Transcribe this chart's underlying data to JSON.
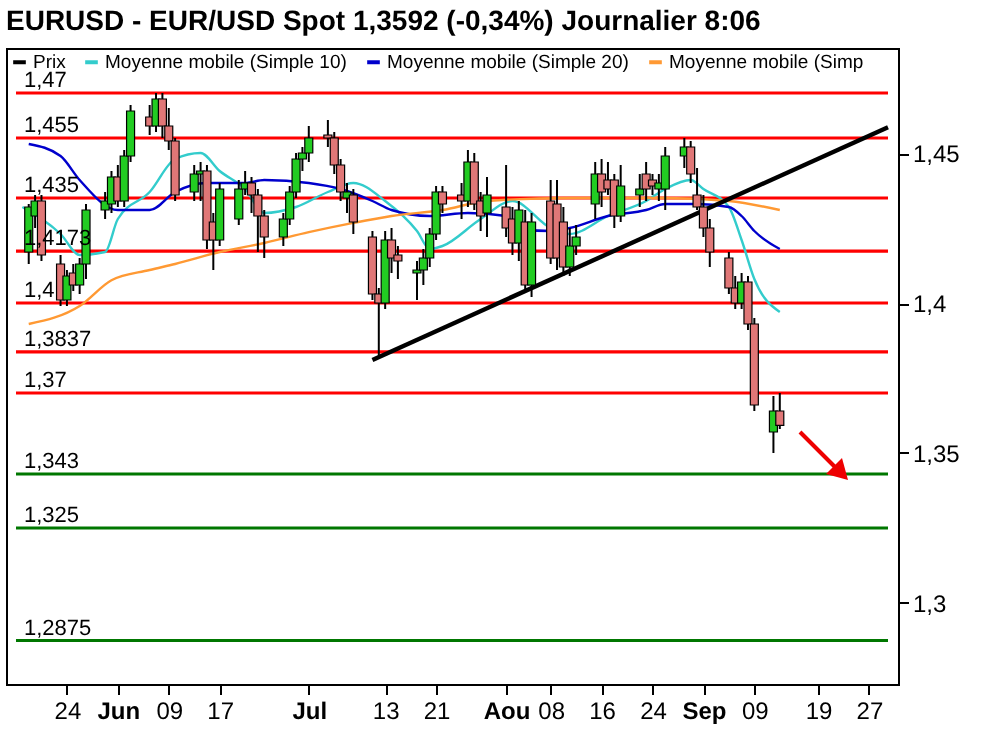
{
  "chart_data": {
    "type": "candlestick",
    "title": "EURUSD - EUR/USD Spot 1,3592 (-0,34%) Journalier 8:06",
    "xlim": [
      "--05-16",
      "--09-30"
    ],
    "xticks": [
      {
        "value": "--05-24",
        "label": "24"
      },
      {
        "value": "--06-01",
        "label": "Jun"
      },
      {
        "value": "--06-09",
        "label": "09"
      },
      {
        "value": "--06-17",
        "label": "17"
      },
      {
        "value": "--07-01",
        "label": "Jul"
      },
      {
        "value": "--07-13",
        "label": "13"
      },
      {
        "value": "--07-21",
        "label": "21"
      },
      {
        "value": "--08-01",
        "label": "Aou"
      },
      {
        "value": "--08-08",
        "label": "08"
      },
      {
        "value": "--08-16",
        "label": "16"
      },
      {
        "value": "--08-24",
        "label": "24"
      },
      {
        "value": "--09-01",
        "label": "Sep"
      },
      {
        "value": "--09-09",
        "label": "09"
      },
      {
        "value": "--09-19",
        "label": "19"
      },
      {
        "value": "--09-27",
        "label": "27"
      }
    ],
    "ylim": [
      1.273,
      1.485
    ],
    "yticks": [
      {
        "value": 1.3,
        "label": "1,3"
      },
      {
        "value": 1.35,
        "label": "1,35"
      },
      {
        "value": 1.4,
        "label": "1,4"
      },
      {
        "value": 1.45,
        "label": "1,45"
      }
    ],
    "legend": "top left",
    "series": [
      {
        "name": "Prix",
        "color": "#000000",
        "x": [
          "--05-18",
          "--05-19",
          "--05-20",
          "--05-23",
          "--05-24",
          "--05-25",
          "--05-26",
          "--05-27",
          "--05-30",
          "--05-31",
          "--06-01",
          "--06-02",
          "--06-03",
          "--06-06",
          "--06-07",
          "--06-08",
          "--06-09",
          "--06-10",
          "--06-13",
          "--06-14",
          "--06-15",
          "--06-16",
          "--06-17",
          "--06-20",
          "--06-21",
          "--06-22",
          "--06-23",
          "--06-24",
          "--06-27",
          "--06-28",
          "--06-29",
          "--06-30",
          "--07-01",
          "--07-04",
          "--07-05",
          "--07-06",
          "--07-07",
          "--07-08",
          "--07-11",
          "--07-12",
          "--07-13",
          "--07-14",
          "--07-15",
          "--07-18",
          "--07-19",
          "--07-20",
          "--07-21",
          "--07-22",
          "--07-25",
          "--07-26",
          "--07-27",
          "--07-28",
          "--07-29",
          "--08-01",
          "--08-02",
          "--08-03",
          "--08-04",
          "--08-05",
          "--08-08",
          "--08-09",
          "--08-10",
          "--08-11",
          "--08-12",
          "--08-15",
          "--08-16",
          "--08-17",
          "--08-18",
          "--08-19",
          "--08-22",
          "--08-23",
          "--08-24",
          "--08-25",
          "--08-26",
          "--08-29",
          "--08-30",
          "--08-31",
          "--09-01",
          "--09-02",
          "--09-05",
          "--09-06",
          "--09-07",
          "--09-08",
          "--09-09",
          "--09-12",
          "--09-13"
        ],
        "ohlc": [
          [
            1.417,
            1.433,
            1.413,
            1.432
          ],
          [
            1.429,
            1.436,
            1.425,
            1.434
          ],
          [
            1.434,
            1.436,
            1.414,
            1.416
          ],
          [
            1.413,
            1.416,
            1.399,
            1.401
          ],
          [
            1.401,
            1.411,
            1.399,
            1.409
          ],
          [
            1.41,
            1.413,
            1.404,
            1.406
          ],
          [
            1.406,
            1.415,
            1.403,
            1.413
          ],
          [
            1.413,
            1.433,
            1.408,
            1.431
          ],
          [
            1.431,
            1.437,
            1.428,
            1.434
          ],
          [
            1.433,
            1.444,
            1.43,
            1.442
          ],
          [
            1.442,
            1.446,
            1.432,
            1.434
          ],
          [
            1.434,
            1.451,
            1.432,
            1.449
          ],
          [
            1.449,
            1.466,
            1.447,
            1.464
          ],
          [
            1.462,
            1.466,
            1.456,
            1.459
          ],
          [
            1.459,
            1.47,
            1.457,
            1.468
          ],
          [
            1.468,
            1.47,
            1.455,
            1.459
          ],
          [
            1.459,
            1.465,
            1.451,
            1.454
          ],
          [
            1.454,
            1.455,
            1.434,
            1.436
          ],
          [
            1.437,
            1.446,
            1.434,
            1.443
          ],
          [
            1.443,
            1.447,
            1.434,
            1.444
          ],
          [
            1.444,
            1.446,
            1.418,
            1.421
          ],
          [
            1.427,
            1.43,
            1.411,
            1.421
          ],
          [
            1.421,
            1.44,
            1.419,
            1.438
          ],
          [
            1.428,
            1.441,
            1.426,
            1.438
          ],
          [
            1.438,
            1.444,
            1.436,
            1.44
          ],
          [
            1.44,
            1.442,
            1.43,
            1.436
          ],
          [
            1.436,
            1.438,
            1.417,
            1.429
          ],
          [
            1.429,
            1.431,
            1.415,
            1.422
          ],
          [
            1.422,
            1.43,
            1.419,
            1.428
          ],
          [
            1.428,
            1.439,
            1.426,
            1.437
          ],
          [
            1.437,
            1.45,
            1.435,
            1.448
          ],
          [
            1.448,
            1.452,
            1.444,
            1.45
          ],
          [
            1.45,
            1.459,
            1.447,
            1.455
          ],
          [
            1.456,
            1.461,
            1.452,
            1.455
          ],
          [
            1.455,
            1.457,
            1.443,
            1.446
          ],
          [
            1.446,
            1.448,
            1.434,
            1.437
          ],
          [
            1.435,
            1.44,
            1.43,
            1.437
          ],
          [
            1.436,
            1.438,
            1.423,
            1.427
          ],
          [
            1.422,
            1.424,
            1.401,
            1.403
          ],
          [
            1.403,
            1.405,
            1.382,
            1.4
          ],
          [
            1.4,
            1.424,
            1.398,
            1.421
          ],
          [
            1.421,
            1.425,
            1.41,
            1.415
          ],
          [
            1.416,
            1.419,
            1.408,
            1.414
          ],
          [
            1.41,
            1.414,
            1.401,
            1.411
          ],
          [
            1.411,
            1.418,
            1.406,
            1.415
          ],
          [
            1.415,
            1.425,
            1.412,
            1.423
          ],
          [
            1.423,
            1.439,
            1.421,
            1.437
          ],
          [
            1.437,
            1.439,
            1.43,
            1.433
          ],
          [
            1.436,
            1.44,
            1.428,
            1.434
          ],
          [
            1.434,
            1.451,
            1.432,
            1.447
          ],
          [
            1.447,
            1.45,
            1.431,
            1.433
          ],
          [
            1.434,
            1.437,
            1.424,
            1.429
          ],
          [
            1.43,
            1.442,
            1.422,
            1.436
          ],
          [
            1.432,
            1.446,
            1.422,
            1.425
          ],
          [
            1.428,
            1.432,
            1.416,
            1.42
          ],
          [
            1.42,
            1.434,
            1.414,
            1.431
          ],
          [
            1.427,
            1.431,
            1.404,
            1.406
          ],
          [
            1.406,
            1.43,
            1.402,
            1.427
          ],
          [
            1.434,
            1.441,
            1.413,
            1.415
          ],
          [
            1.433,
            1.441,
            1.411,
            1.415
          ],
          [
            1.427,
            1.432,
            1.409,
            1.412
          ],
          [
            1.412,
            1.425,
            1.409,
            1.419
          ],
          [
            1.419,
            1.426,
            1.416,
            1.422
          ],
          [
            1.433,
            1.447,
            1.428,
            1.443
          ],
          [
            1.443,
            1.448,
            1.432,
            1.437
          ],
          [
            1.441,
            1.447,
            1.436,
            1.438
          ],
          [
            1.441,
            1.443,
            1.425,
            1.429
          ],
          [
            1.429,
            1.446,
            1.427,
            1.439
          ],
          [
            1.436,
            1.443,
            1.432,
            1.438
          ],
          [
            1.443,
            1.447,
            1.434,
            1.438
          ],
          [
            1.441,
            1.443,
            1.436,
            1.439
          ],
          [
            1.438,
            1.443,
            1.434,
            1.44
          ],
          [
            1.438,
            1.452,
            1.431,
            1.449
          ],
          [
            1.449,
            1.455,
            1.445,
            1.452
          ],
          [
            1.452,
            1.454,
            1.44,
            1.443
          ],
          [
            1.436,
            1.445,
            1.431,
            1.432
          ],
          [
            1.432,
            1.436,
            1.422,
            1.425
          ],
          [
            1.425,
            1.428,
            1.412,
            1.417
          ],
          [
            1.415,
            1.417,
            1.403,
            1.405
          ],
          [
            1.405,
            1.409,
            1.398,
            1.4
          ],
          [
            1.4,
            1.41,
            1.398,
            1.407
          ],
          [
            1.407,
            1.409,
            1.391,
            1.393
          ],
          [
            1.393,
            1.395,
            1.364,
            1.366
          ],
          [
            1.357,
            1.369,
            1.35,
            1.364
          ],
          [
            1.364,
            1.37,
            1.358,
            1.3592
          ]
        ],
        "colors": [
          "#22cc22",
          "#22cc22",
          "#e07777",
          "#e07777",
          "#22cc22",
          "#e07777",
          "#22cc22",
          "#22cc22",
          "#22cc22",
          "#22cc22",
          "#e07777",
          "#22cc22",
          "#22cc22",
          "#e07777",
          "#22cc22",
          "#e07777",
          "#e07777",
          "#e07777",
          "#22cc22",
          "#22cc22",
          "#e07777",
          "#e07777",
          "#22cc22",
          "#22cc22",
          "#22cc22",
          "#e07777",
          "#e07777",
          "#e07777",
          "#22cc22",
          "#22cc22",
          "#22cc22",
          "#22cc22",
          "#22cc22",
          "#e07777",
          "#e07777",
          "#e07777",
          "#22cc22",
          "#e07777",
          "#e07777",
          "#e07777",
          "#22cc22",
          "#e07777",
          "#e07777",
          "#22cc22",
          "#22cc22",
          "#22cc22",
          "#22cc22",
          "#e07777",
          "#e07777",
          "#22cc22",
          "#e07777",
          "#e07777",
          "#22cc22",
          "#e07777",
          "#e07777",
          "#22cc22",
          "#e07777",
          "#22cc22",
          "#e07777",
          "#e07777",
          "#e07777",
          "#22cc22",
          "#22cc22",
          "#22cc22",
          "#e07777",
          "#e07777",
          "#e07777",
          "#22cc22",
          "#22cc22",
          "#e07777",
          "#e07777",
          "#22cc22",
          "#22cc22",
          "#22cc22",
          "#e07777",
          "#e07777",
          "#e07777",
          "#e07777",
          "#e07777",
          "#e07777",
          "#22cc22",
          "#e07777",
          "#e07777",
          "#22cc22",
          "#e07777"
        ]
      },
      {
        "name": "Moyenne mobile (Simple 10)",
        "type": "line",
        "color": "#33cccc",
        "x": [
          "--05-17",
          "--05-23",
          "--05-26",
          "--05-30",
          "--06-01",
          "--06-06",
          "--06-10",
          "--06-14",
          "--06-17",
          "--06-21",
          "--06-24",
          "--06-29",
          "--07-04",
          "--07-08",
          "--07-13",
          "--07-18",
          "--07-20",
          "--07-22",
          "--07-28",
          "--08-02",
          "--08-08",
          "--08-11",
          "--08-17",
          "--08-23",
          "--08-26",
          "--08-30",
          "--09-01",
          "--09-05",
          "--09-07",
          "--09-09",
          "--09-13"
        ],
        "values": [
          1.432,
          1.423,
          1.416,
          1.417,
          1.428,
          1.437,
          1.448,
          1.45,
          1.444,
          1.438,
          1.43,
          1.432,
          1.437,
          1.44,
          1.434,
          1.424,
          1.418,
          1.419,
          1.428,
          1.434,
          1.425,
          1.423,
          1.429,
          1.434,
          1.438,
          1.441,
          1.438,
          1.432,
          1.421,
          1.408,
          1.397
        ]
      },
      {
        "name": "Moyenne mobile (Simple 20)",
        "type": "line",
        "color": "#0000cc",
        "x": [
          "--05-18",
          "--05-23",
          "--05-26",
          "--06-01",
          "--06-06",
          "--06-10",
          "--06-15",
          "--06-21",
          "--06-24",
          "--07-01",
          "--07-06",
          "--07-11",
          "--07-14",
          "--07-20",
          "--07-26",
          "--08-01",
          "--08-02",
          "--08-08",
          "--08-11",
          "--08-17",
          "--08-23",
          "--08-26",
          "--08-31",
          "--09-05",
          "--09-07",
          "--09-09",
          "--09-13"
        ],
        "values": [
          1.453,
          1.449,
          1.441,
          1.431,
          1.431,
          1.437,
          1.44,
          1.44,
          1.441,
          1.44,
          1.438,
          1.434,
          1.431,
          1.429,
          1.43,
          1.429,
          1.425,
          1.424,
          1.425,
          1.429,
          1.431,
          1.433,
          1.433,
          1.432,
          1.429,
          1.424,
          1.418
        ]
      },
      {
        "name": "Moyenne mobile (Simp",
        "type": "line",
        "color": "#ff9933",
        "x": [
          "--05-18",
          "--05-26",
          "--05-31",
          "--06-06",
          "--06-10",
          "--06-17",
          "--06-24",
          "--07-01",
          "--07-08",
          "--07-14",
          "--07-22",
          "--07-29",
          "--08-11",
          "--08-26",
          "--09-05",
          "--09-13"
        ],
        "values": [
          1.393,
          1.399,
          1.4076,
          1.411,
          1.413,
          1.417,
          1.42,
          1.4236,
          1.4267,
          1.429,
          1.431,
          1.434,
          1.435,
          1.435,
          1.434,
          1.431
        ]
      },
      {
        "type": "line",
        "color": "#000000",
        "x": [
          "--07-11",
          "--09-30"
        ],
        "values": [
          1.381,
          1.4586
        ]
      }
    ],
    "ref_lines": [
      {
        "axis": "y",
        "value": 1.47,
        "label": "1,47",
        "color": "#ff0000"
      },
      {
        "axis": "y",
        "value": 1.455,
        "label": "1,455",
        "color": "#ff0000"
      },
      {
        "axis": "y",
        "value": 1.435,
        "label": "1,435",
        "color": "#ff0000"
      },
      {
        "axis": "y",
        "value": 1.4173,
        "label": "1,4173",
        "color": "#ff0000"
      },
      {
        "axis": "y",
        "value": 1.4,
        "label": "1,4",
        "color": "#ff0000"
      },
      {
        "axis": "y",
        "value": 1.3837,
        "label": "1,3837",
        "color": "#ff0000"
      },
      {
        "axis": "y",
        "value": 1.37,
        "label": "1,37",
        "color": "#ff0000"
      },
      {
        "axis": "y",
        "value": 1.343,
        "label": "1,343",
        "color": "#007700"
      },
      {
        "axis": "y",
        "value": 1.325,
        "label": "1,325",
        "color": "#007700"
      },
      {
        "axis": "y",
        "value": 1.2875,
        "label": "1,2875",
        "color": "#007700"
      }
    ]
  }
}
